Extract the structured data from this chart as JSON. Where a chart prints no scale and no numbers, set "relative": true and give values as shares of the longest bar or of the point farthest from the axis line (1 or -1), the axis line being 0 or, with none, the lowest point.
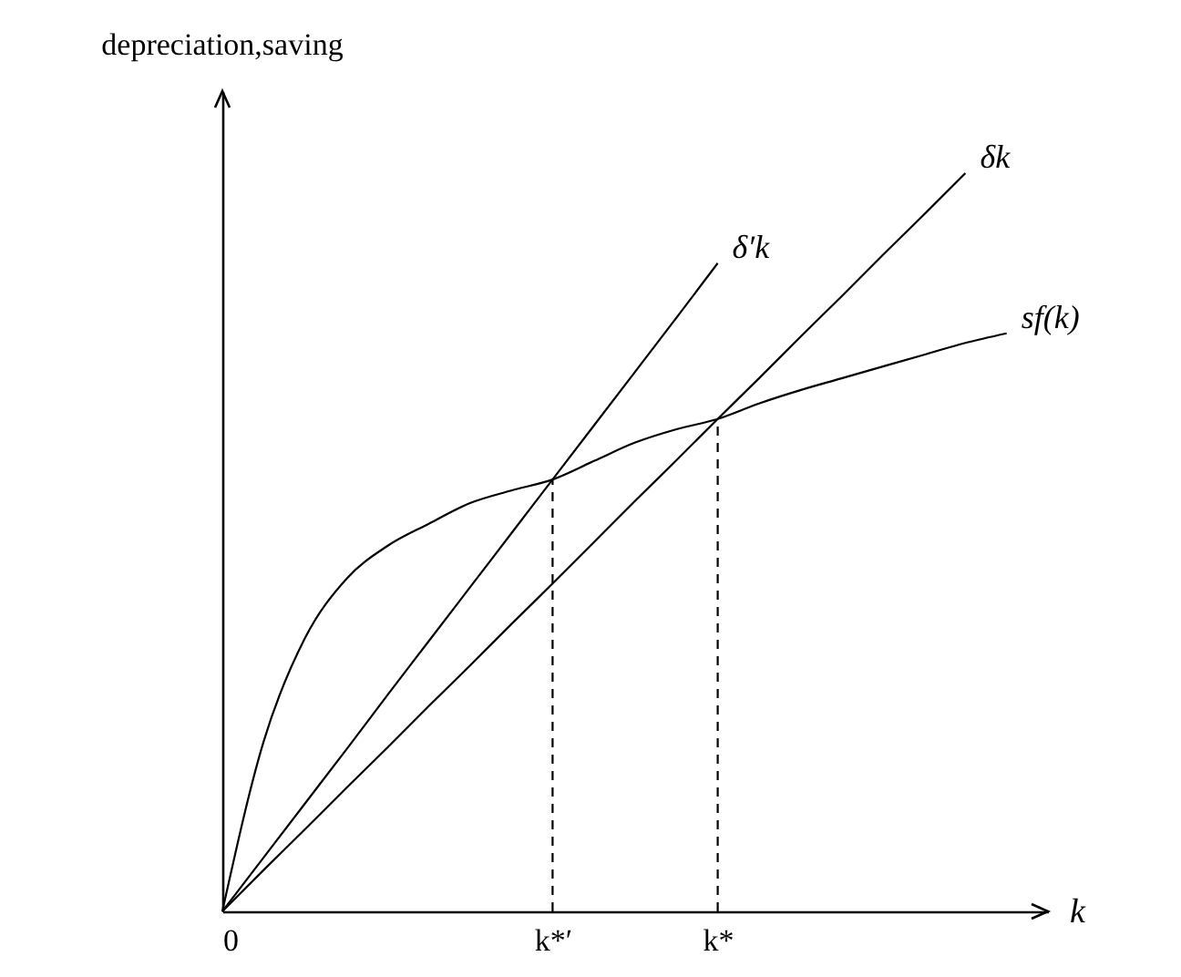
{
  "chart_data": {
    "type": "line",
    "relative": true,
    "xlabel": "k",
    "ylabel": "depreciation,saving",
    "categories": [
      "0",
      null,
      null,
      null,
      null,
      null,
      null,
      null,
      "k*′",
      null,
      null,
      null,
      "k*",
      null,
      null,
      null,
      null,
      null,
      null,
      null,
      null
    ],
    "marker": "none",
    "series": [
      {
        "name": "δ′k",
        "color": "#000000",
        "values": [
          0,
          0.073,
          0.146,
          0.219,
          0.293,
          0.366,
          0.439,
          0.512,
          0.585,
          0.658,
          0.731,
          0.804,
          0.878,
          null,
          null,
          null,
          null,
          null,
          null,
          null,
          null
        ]
      },
      {
        "name": "δk",
        "color": "#000000",
        "values": [
          0,
          0.056,
          0.111,
          0.167,
          0.222,
          0.278,
          0.333,
          0.389,
          0.444,
          0.5,
          0.556,
          0.611,
          0.667,
          0.722,
          0.778,
          0.833,
          0.889,
          0.944,
          1.0,
          null,
          null
        ]
      },
      {
        "name": "sf(k)",
        "color": "#000000",
        "values": [
          0,
          0.23,
          0.37,
          0.45,
          0.495,
          0.525,
          0.553,
          0.57,
          0.585,
          0.61,
          0.635,
          0.653,
          0.667,
          0.688,
          0.706,
          0.722,
          0.738,
          0.754,
          0.77,
          0.783,
          null
        ]
      },
      {
        "color": "#000000",
        "line_style": "dashed",
        "x": [
          "k*′",
          "k*′"
        ],
        "values": [
          0,
          0.585
        ]
      },
      {
        "color": "#000000",
        "line_style": "dashed",
        "x": [
          "k*",
          "k*"
        ],
        "values": [
          0,
          0.667
        ]
      }
    ]
  }
}
